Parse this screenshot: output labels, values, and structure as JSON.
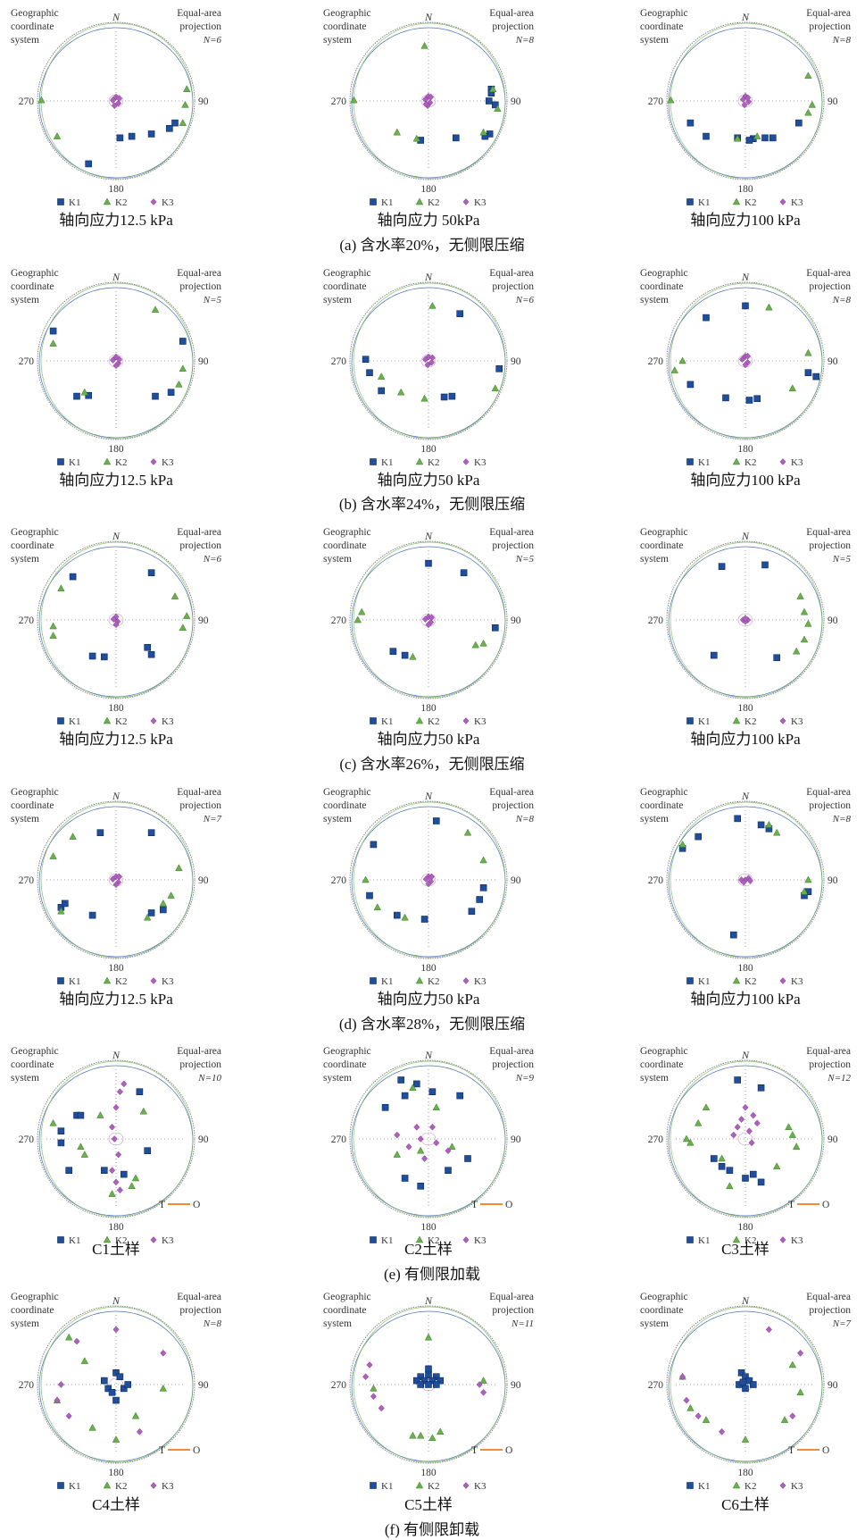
{
  "labels": {
    "geo": [
      "Geographic",
      "coordinate",
      "system"
    ],
    "proj": [
      "Equal-area",
      "projection"
    ],
    "north": "N",
    "east": "90",
    "west": "270",
    "south": "180",
    "legend": [
      "K1",
      "K2",
      "K3"
    ],
    "to_label": [
      "T",
      "O"
    ]
  },
  "colors": {
    "k1": "#1f4e9c",
    "k2": "#6ab04c",
    "k3": "#b05fc0",
    "circle": "#7a7a7a",
    "to_line": "#f07b1a"
  },
  "panels": [
    {
      "n": "N=6",
      "caption": "轴向应力12.5 kPa",
      "k1": [
        [
          -35,
          -80
        ],
        [
          75,
          -28
        ],
        [
          68,
          -35
        ],
        [
          45,
          -42
        ],
        [
          20,
          -45
        ],
        [
          5,
          -47
        ]
      ],
      "k2": [
        [
          90,
          15
        ],
        [
          85,
          -28
        ],
        [
          -95,
          1
        ],
        [
          -75,
          -45
        ],
        [
          88,
          -5
        ]
      ],
      "k3": [
        [
          0,
          5
        ],
        [
          -4,
          1
        ],
        [
          3,
          -3
        ],
        [
          -2,
          -6
        ],
        [
          4,
          3
        ]
      ]
    },
    {
      "n": "N=8",
      "caption": "轴向应力 50kPa",
      "k1": [
        [
          78,
          -42
        ],
        [
          35,
          -47
        ],
        [
          -10,
          -50
        ],
        [
          80,
          15
        ],
        [
          85,
          -5
        ],
        [
          72,
          -45
        ],
        [
          77,
          0
        ],
        [
          80,
          10
        ]
      ],
      "k2": [
        [
          -5,
          70
        ],
        [
          82,
          15
        ],
        [
          70,
          -40
        ],
        [
          -15,
          -48
        ],
        [
          -40,
          -40
        ],
        [
          -95,
          1
        ],
        [
          88,
          -10
        ]
      ],
      "k3": [
        [
          0,
          6
        ],
        [
          -4,
          2
        ],
        [
          2,
          -2
        ],
        [
          -1,
          -6
        ],
        [
          3,
          5
        ],
        [
          -3,
          -4
        ]
      ]
    },
    {
      "n": "N=8",
      "caption": "轴向应力100 kPa",
      "k1": [
        [
          -70,
          -28
        ],
        [
          -50,
          -45
        ],
        [
          -10,
          -47
        ],
        [
          10,
          -48
        ],
        [
          25,
          -47
        ],
        [
          35,
          -47
        ],
        [
          68,
          -28
        ],
        [
          5,
          -50
        ]
      ],
      "k2": [
        [
          80,
          32
        ],
        [
          85,
          -5
        ],
        [
          -95,
          1
        ],
        [
          -10,
          -48
        ],
        [
          80,
          -15
        ],
        [
          15,
          -45
        ]
      ],
      "k3": [
        [
          0,
          6
        ],
        [
          -3,
          2
        ],
        [
          4,
          -1
        ],
        [
          -1,
          -5
        ],
        [
          3,
          4
        ]
      ]
    },
    {
      "n": "N=5",
      "caption": "轴向应力12.5 kPa",
      "k1": [
        [
          -80,
          38
        ],
        [
          70,
          -40
        ],
        [
          50,
          -45
        ],
        [
          -50,
          -45
        ],
        [
          -35,
          -44
        ],
        [
          85,
          25
        ]
      ],
      "k2": [
        [
          50,
          65
        ],
        [
          -80,
          22
        ],
        [
          85,
          -10
        ],
        [
          -40,
          -40
        ],
        [
          80,
          -30
        ]
      ],
      "k3": [
        [
          0,
          5
        ],
        [
          -4,
          1
        ],
        [
          3,
          -3
        ],
        [
          0,
          -6
        ],
        [
          4,
          2
        ]
      ]
    },
    {
      "n": "N=6",
      "caption": "轴向应力50 kPa",
      "k1": [
        [
          40,
          60
        ],
        [
          -80,
          2
        ],
        [
          -75,
          -15
        ],
        [
          90,
          -10
        ],
        [
          30,
          -45
        ],
        [
          -60,
          -38
        ],
        [
          20,
          -46
        ]
      ],
      "k2": [
        [
          5,
          70
        ],
        [
          85,
          -35
        ],
        [
          -5,
          -48
        ],
        [
          -35,
          -40
        ],
        [
          -60,
          -20
        ]
      ],
      "k3": [
        [
          0,
          5
        ],
        [
          -4,
          2
        ],
        [
          4,
          -2
        ],
        [
          -1,
          -5
        ],
        [
          5,
          4
        ]
      ]
    },
    {
      "n": "N=8",
      "caption": "轴向应力100 kPa",
      "k1": [
        [
          0,
          70
        ],
        [
          -50,
          55
        ],
        [
          -70,
          -30
        ],
        [
          -25,
          -47
        ],
        [
          5,
          -50
        ],
        [
          90,
          -20
        ],
        [
          80,
          -15
        ],
        [
          15,
          -48
        ]
      ],
      "k2": [
        [
          30,
          68
        ],
        [
          80,
          10
        ],
        [
          -80,
          0
        ],
        [
          60,
          -35
        ],
        [
          -90,
          -12
        ]
      ],
      "k3": [
        [
          0,
          6
        ],
        [
          -4,
          2
        ],
        [
          3,
          -2
        ],
        [
          0,
          -5
        ],
        [
          3,
          6
        ]
      ]
    },
    {
      "n": "N=6",
      "caption": "轴向应力12.5 kPa",
      "k1": [
        [
          -55,
          55
        ],
        [
          45,
          60
        ],
        [
          -15,
          -47
        ],
        [
          45,
          -44
        ],
        [
          40,
          -35
        ],
        [
          -30,
          -46
        ]
      ],
      "k2": [
        [
          -70,
          40
        ],
        [
          75,
          30
        ],
        [
          85,
          -10
        ],
        [
          -80,
          -20
        ],
        [
          -80,
          -8
        ],
        [
          90,
          5
        ]
      ],
      "k3": [
        [
          0,
          4
        ],
        [
          -3,
          1
        ],
        [
          2,
          -2
        ],
        [
          0,
          -6
        ]
      ]
    },
    {
      "n": "N=5",
      "caption": "轴向应力50 kPa",
      "k1": [
        [
          0,
          72
        ],
        [
          45,
          60
        ],
        [
          85,
          -10
        ],
        [
          -45,
          -40
        ],
        [
          -30,
          -45
        ]
      ],
      "k2": [
        [
          -85,
          10
        ],
        [
          -90,
          0
        ],
        [
          70,
          -30
        ],
        [
          60,
          -32
        ],
        [
          -20,
          -47
        ]
      ],
      "k3": [
        [
          0,
          4
        ],
        [
          -4,
          1
        ],
        [
          3,
          -3
        ],
        [
          0,
          -6
        ],
        [
          4,
          3
        ]
      ]
    },
    {
      "n": "N=5",
      "caption": "轴向应力100 kPa",
      "k1": [
        [
          -30,
          68
        ],
        [
          25,
          70
        ],
        [
          -40,
          -45
        ],
        [
          40,
          -48
        ]
      ],
      "k2": [
        [
          70,
          30
        ],
        [
          75,
          10
        ],
        [
          80,
          -5
        ],
        [
          65,
          -40
        ],
        [
          75,
          -25
        ]
      ],
      "k3": [
        [
          0,
          0
        ],
        [
          -3,
          0
        ],
        [
          3,
          0
        ],
        [
          0,
          -2
        ],
        [
          0,
          2
        ]
      ]
    },
    {
      "n": "N=7",
      "caption": "轴向应力12.5 kPa",
      "k1": [
        [
          -20,
          60
        ],
        [
          45,
          60
        ],
        [
          -70,
          -35
        ],
        [
          -30,
          -45
        ],
        [
          -65,
          -30
        ],
        [
          45,
          -42
        ],
        [
          60,
          -38
        ]
      ],
      "k2": [
        [
          -55,
          55
        ],
        [
          80,
          15
        ],
        [
          70,
          -20
        ],
        [
          60,
          -30
        ],
        [
          -80,
          30
        ],
        [
          -70,
          -40
        ],
        [
          40,
          -48
        ]
      ],
      "k3": [
        [
          0,
          4
        ],
        [
          -4,
          1
        ],
        [
          3,
          -3
        ],
        [
          0,
          -6
        ],
        [
          4,
          4
        ]
      ]
    },
    {
      "n": "N=8",
      "caption": "轴向应力50 kPa",
      "k1": [
        [
          10,
          75
        ],
        [
          -70,
          45
        ],
        [
          -75,
          -20
        ],
        [
          70,
          -10
        ],
        [
          55,
          -40
        ],
        [
          -40,
          -45
        ],
        [
          -5,
          -50
        ],
        [
          65,
          -25
        ]
      ],
      "k2": [
        [
          50,
          60
        ],
        [
          -80,
          0
        ],
        [
          70,
          25
        ],
        [
          -30,
          -48
        ],
        [
          -65,
          -35
        ]
      ],
      "k3": [
        [
          0,
          4
        ],
        [
          -3,
          1
        ],
        [
          3,
          -2
        ],
        [
          0,
          -5
        ],
        [
          4,
          4
        ]
      ]
    },
    {
      "n": "N=8",
      "caption": "轴向应力100 kPa",
      "k1": [
        [
          -10,
          78
        ],
        [
          20,
          70
        ],
        [
          30,
          65
        ],
        [
          -80,
          40
        ],
        [
          -60,
          55
        ],
        [
          80,
          -15
        ],
        [
          -15,
          -70
        ],
        [
          75,
          -20
        ]
      ],
      "k2": [
        [
          30,
          70
        ],
        [
          80,
          0
        ],
        [
          75,
          -15
        ],
        [
          -80,
          45
        ],
        [
          40,
          60
        ]
      ],
      "k3": [
        [
          0,
          0
        ],
        [
          -5,
          0
        ],
        [
          4,
          2
        ],
        [
          -2,
          -3
        ],
        [
          6,
          -1
        ]
      ]
    },
    {
      "n": "N=10",
      "caption": "C1土样",
      "k1": [
        [
          -70,
          10
        ],
        [
          -50,
          30
        ],
        [
          -45,
          30
        ],
        [
          -60,
          -40
        ],
        [
          30,
          60
        ],
        [
          10,
          -45
        ],
        [
          -15,
          -40
        ],
        [
          -70,
          -5
        ],
        [
          40,
          -15
        ]
      ],
      "k2": [
        [
          -40,
          -20
        ],
        [
          -5,
          -70
        ],
        [
          25,
          -50
        ],
        [
          35,
          35
        ],
        [
          -80,
          20
        ],
        [
          -20,
          30
        ],
        [
          -45,
          -10
        ],
        [
          20,
          -60
        ]
      ],
      "k3": [
        [
          10,
          70
        ],
        [
          5,
          60
        ],
        [
          0,
          40
        ],
        [
          -5,
          15
        ],
        [
          -2,
          0
        ],
        [
          3,
          -20
        ],
        [
          -5,
          -40
        ],
        [
          0,
          -55
        ],
        [
          5,
          -65
        ]
      ]
    },
    {
      "n": "N=9",
      "caption": "C2土样",
      "k1": [
        [
          -35,
          75
        ],
        [
          -15,
          70
        ],
        [
          5,
          60
        ],
        [
          40,
          55
        ],
        [
          -55,
          40
        ],
        [
          -30,
          55
        ],
        [
          25,
          -40
        ],
        [
          -10,
          -60
        ],
        [
          -30,
          -50
        ],
        [
          50,
          -25
        ]
      ],
      "k2": [
        [
          -20,
          65
        ],
        [
          10,
          40
        ],
        [
          -40,
          -20
        ],
        [
          -10,
          -15
        ],
        [
          30,
          -10
        ]
      ],
      "k3": [
        [
          -40,
          5
        ],
        [
          -25,
          -10
        ],
        [
          -10,
          0
        ],
        [
          10,
          -5
        ],
        [
          25,
          -15
        ],
        [
          -5,
          -25
        ],
        [
          -15,
          15
        ],
        [
          5,
          15
        ]
      ]
    },
    {
      "n": "N=12",
      "caption": "C3土样",
      "k1": [
        [
          -10,
          75
        ],
        [
          20,
          65
        ],
        [
          -30,
          -35
        ],
        [
          -20,
          -40
        ],
        [
          0,
          -50
        ],
        [
          10,
          -45
        ],
        [
          -40,
          -25
        ],
        [
          20,
          -55
        ]
      ],
      "k2": [
        [
          -50,
          40
        ],
        [
          -60,
          20
        ],
        [
          -70,
          -5
        ],
        [
          55,
          15
        ],
        [
          60,
          5
        ],
        [
          -30,
          -25
        ],
        [
          -20,
          -60
        ],
        [
          40,
          -35
        ],
        [
          -75,
          0
        ],
        [
          65,
          -10
        ]
      ],
      "k3": [
        [
          0,
          40
        ],
        [
          10,
          30
        ],
        [
          -5,
          25
        ],
        [
          -10,
          15
        ],
        [
          15,
          20
        ],
        [
          5,
          10
        ],
        [
          -15,
          5
        ],
        [
          8,
          -5
        ]
      ]
    },
    {
      "n": "N=8",
      "caption": "C4土样",
      "k1": [
        [
          0,
          15
        ],
        [
          5,
          10
        ],
        [
          -10,
          -5
        ],
        [
          10,
          -5
        ],
        [
          -5,
          -10
        ],
        [
          15,
          0
        ],
        [
          -15,
          5
        ],
        [
          0,
          -20
        ]
      ],
      "k2": [
        [
          -60,
          60
        ],
        [
          60,
          -5
        ],
        [
          -75,
          -20
        ],
        [
          -30,
          -55
        ],
        [
          25,
          -40
        ],
        [
          0,
          -70
        ],
        [
          -40,
          30
        ]
      ],
      "k3": [
        [
          -70,
          0
        ],
        [
          -75,
          -20
        ],
        [
          -60,
          -40
        ],
        [
          -50,
          55
        ],
        [
          60,
          40
        ],
        [
          0,
          70
        ],
        [
          30,
          -60
        ]
      ]
    },
    {
      "n": "N=11",
      "caption": "C5土样",
      "k1": [
        [
          -10,
          10
        ],
        [
          0,
          12
        ],
        [
          10,
          10
        ],
        [
          -5,
          5
        ],
        [
          5,
          5
        ],
        [
          -15,
          5
        ],
        [
          15,
          5
        ],
        [
          0,
          0
        ],
        [
          -10,
          0
        ],
        [
          10,
          0
        ],
        [
          0,
          20
        ]
      ],
      "k2": [
        [
          0,
          60
        ],
        [
          -70,
          -5
        ],
        [
          -10,
          -65
        ],
        [
          5,
          -68
        ],
        [
          15,
          -60
        ],
        [
          -20,
          -65
        ],
        [
          70,
          5
        ]
      ],
      "k3": [
        [
          -80,
          10
        ],
        [
          -70,
          -15
        ],
        [
          -60,
          -30
        ],
        [
          65,
          0
        ],
        [
          70,
          -10
        ],
        [
          -75,
          25
        ]
      ]
    },
    {
      "n": "N=7",
      "caption": "C6土样",
      "k1": [
        [
          -5,
          15
        ],
        [
          0,
          10
        ],
        [
          5,
          5
        ],
        [
          -8,
          0
        ],
        [
          0,
          -5
        ],
        [
          10,
          0
        ],
        [
          -3,
          3
        ]
      ],
      "k2": [
        [
          60,
          25
        ],
        [
          70,
          -10
        ],
        [
          50,
          -45
        ],
        [
          -50,
          -45
        ],
        [
          0,
          -70
        ],
        [
          -70,
          -30
        ],
        [
          -80,
          10
        ]
      ],
      "k3": [
        [
          -80,
          10
        ],
        [
          -75,
          -20
        ],
        [
          -60,
          -40
        ],
        [
          -30,
          -60
        ],
        [
          60,
          -40
        ],
        [
          70,
          40
        ],
        [
          30,
          70
        ]
      ]
    }
  ],
  "group_captions": [
    "(a) 含水率20%，无侧限压缩",
    "(b) 含水率24%，无侧限压缩",
    "(c) 含水率26%，无侧限压缩",
    "(d) 含水率28%，无侧限压缩",
    "(e) 有侧限加载",
    "(f) 有侧限卸载"
  ]
}
